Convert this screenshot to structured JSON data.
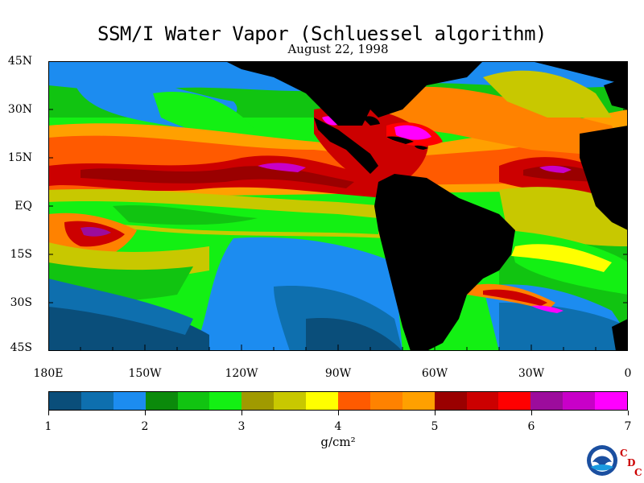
{
  "title": "SSM/I Water Vapor (Schluessel algorithm)",
  "date": "August 22, 1998",
  "lat_labels": [
    "45N",
    "30N",
    "15N",
    "EQ",
    "15S",
    "30S",
    "45S"
  ],
  "lon_labels": [
    "180E",
    "150W",
    "120W",
    "90W",
    "60W",
    "30W",
    "0"
  ],
  "colorbar": {
    "ticks": [
      "1",
      "2",
      "3",
      "4",
      "5",
      "6",
      "7"
    ],
    "units": "g/cm²",
    "colors": [
      "#0a4e7a",
      "#0e6fae",
      "#1c8cf0",
      "#0b8a0b",
      "#11c411",
      "#13f013",
      "#a09a00",
      "#c8c800",
      "#ffff00",
      "#ff5a00",
      "#ff8200",
      "#ffa000",
      "#9a0000",
      "#cc0000",
      "#ff0000",
      "#9c0c9c",
      "#c800c8",
      "#ff00ff"
    ]
  },
  "logo": {
    "icon": "noaa-icon",
    "name": "NOAA"
  },
  "cdc": {
    "c1": "C",
    "d": "D",
    "c2": "C"
  }
}
